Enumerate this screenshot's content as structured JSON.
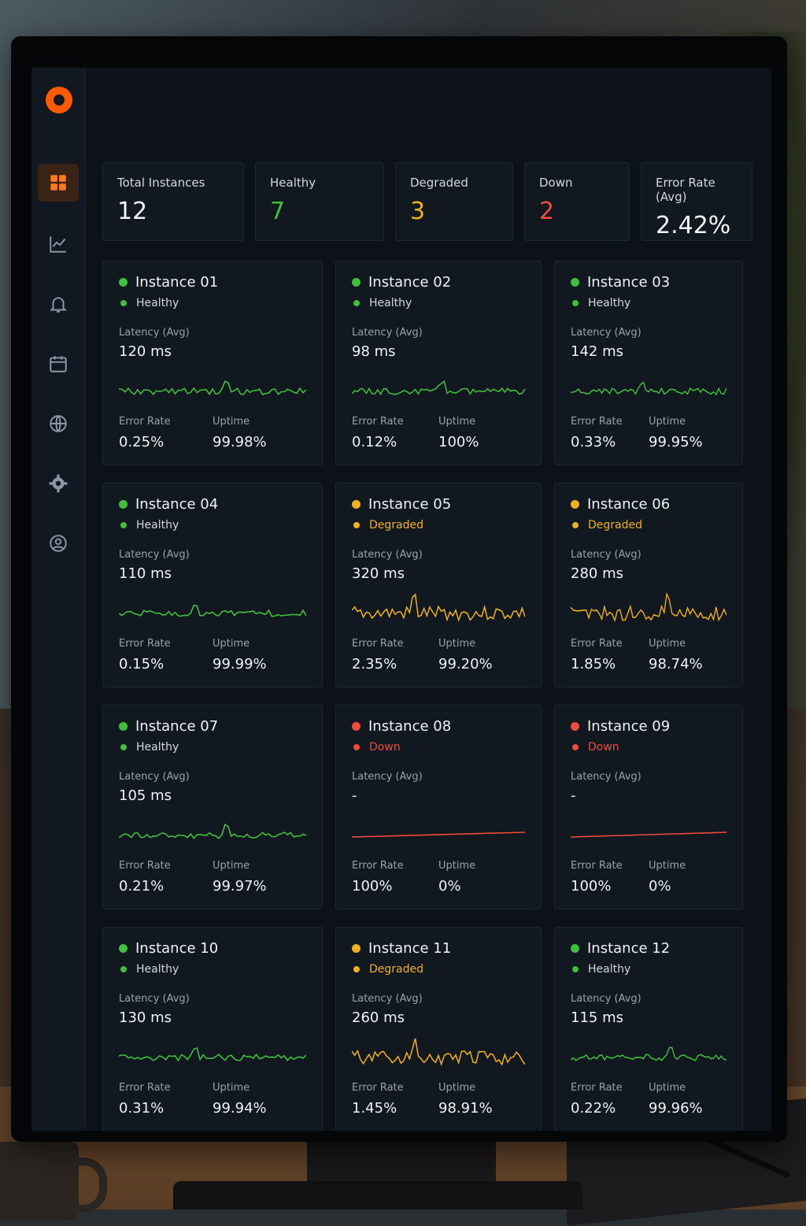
{
  "summary": [
    {
      "label": "Total Instances",
      "value": "12",
      "tone": "white"
    },
    {
      "label": "Healthy",
      "value": "7",
      "tone": "green"
    },
    {
      "label": "Degraded",
      "value": "3",
      "tone": "amber"
    },
    {
      "label": "Down",
      "value": "2",
      "tone": "red"
    },
    {
      "label": "Error Rate (Avg)",
      "value": "2.42%",
      "tone": "white"
    }
  ],
  "labels": {
    "latency": "Latency (Avg)",
    "error_rate": "Error Rate",
    "uptime": "Uptime"
  },
  "instances": [
    {
      "name": "Instance 01",
      "status": "Healthy",
      "latency": "120 ms",
      "error_rate": "0.25%",
      "uptime": "99.98%"
    },
    {
      "name": "Instance 02",
      "status": "Healthy",
      "latency": "98 ms",
      "error_rate": "0.12%",
      "uptime": "100%"
    },
    {
      "name": "Instance 03",
      "status": "Healthy",
      "latency": "142 ms",
      "error_rate": "0.33%",
      "uptime": "99.95%"
    },
    {
      "name": "Instance 04",
      "status": "Healthy",
      "latency": "110 ms",
      "error_rate": "0.15%",
      "uptime": "99.99%"
    },
    {
      "name": "Instance 05",
      "status": "Degraded",
      "latency": "320 ms",
      "error_rate": "2.35%",
      "uptime": "99.20%"
    },
    {
      "name": "Instance 06",
      "status": "Degraded",
      "latency": "280 ms",
      "error_rate": "1.85%",
      "uptime": "98.74%"
    },
    {
      "name": "Instance 07",
      "status": "Healthy",
      "latency": "105 ms",
      "error_rate": "0.21%",
      "uptime": "99.97%"
    },
    {
      "name": "Instance 08",
      "status": "Down",
      "latency": "-",
      "error_rate": "100%",
      "uptime": "0%"
    },
    {
      "name": "Instance 09",
      "status": "Down",
      "latency": "-",
      "error_rate": "100%",
      "uptime": "0%"
    },
    {
      "name": "Instance 10",
      "status": "Healthy",
      "latency": "130 ms",
      "error_rate": "0.31%",
      "uptime": "99.94%"
    },
    {
      "name": "Instance 11",
      "status": "Degraded",
      "latency": "260 ms",
      "error_rate": "1.45%",
      "uptime": "98.91%"
    },
    {
      "name": "Instance 12",
      "status": "Healthy",
      "latency": "115 ms",
      "error_rate": "0.22%",
      "uptime": "99.96%"
    }
  ],
  "nav": [
    {
      "icon": "dashboard-grid-icon",
      "active": true
    },
    {
      "icon": "line-chart-icon",
      "active": false
    },
    {
      "icon": "bell-icon",
      "active": false
    },
    {
      "icon": "calendar-icon",
      "active": false
    },
    {
      "icon": "globe-icon",
      "active": false
    },
    {
      "icon": "gear-icon",
      "active": false
    },
    {
      "icon": "user-circle-icon",
      "active": false
    }
  ],
  "colors": {
    "accent": "#ff5a00",
    "healthy": "#3fbf3a",
    "degraded": "#f0b21a",
    "down": "#f04b3c"
  }
}
